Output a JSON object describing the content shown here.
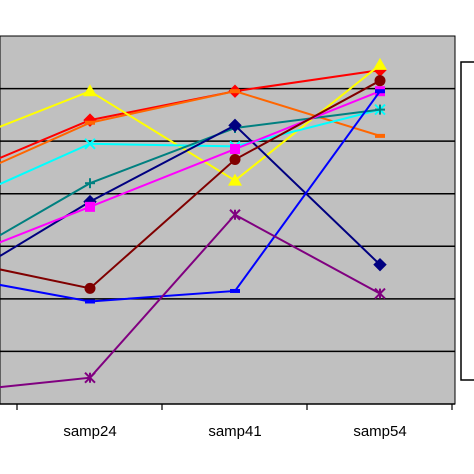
{
  "chart_data": {
    "type": "line",
    "categories": [
      "",
      "samp24",
      "samp41",
      "samp54"
    ],
    "ylim": [
      0,
      7
    ],
    "grid": true,
    "legend": "right (entries not visible)",
    "plot_background": "#c0c0c0",
    "series": [
      {
        "color": "#ff0000",
        "marker": "diamond",
        "values": [
          4.6,
          5.4,
          5.95,
          6.35
        ]
      },
      {
        "color": "#ff6600",
        "marker": "dash",
        "values": [
          4.5,
          5.35,
          5.95,
          5.1
        ]
      },
      {
        "color": "#ffff00",
        "marker": "triangle",
        "values": [
          5.2,
          5.95,
          4.25,
          6.45
        ]
      },
      {
        "color": "#00ffff",
        "marker": "x",
        "values": [
          4.1,
          4.95,
          4.9,
          5.6
        ]
      },
      {
        "color": "#008080",
        "marker": "plus",
        "values": [
          3.1,
          4.2,
          5.25,
          5.6
        ]
      },
      {
        "color": "#000080",
        "marker": "diamond",
        "values": [
          2.7,
          3.85,
          5.3,
          2.65
        ]
      },
      {
        "color": "#ff00ff",
        "marker": "square",
        "values": [
          3.0,
          3.75,
          4.85,
          5.95
        ]
      },
      {
        "color": "#800000",
        "marker": "circle",
        "values": [
          2.6,
          2.2,
          4.65,
          6.15
        ]
      },
      {
        "color": "#0000ff",
        "marker": "dash",
        "values": [
          2.3,
          1.95,
          2.15,
          5.95
        ]
      },
      {
        "color": "#800080",
        "marker": "star",
        "values": [
          0.3,
          0.5,
          3.6,
          2.1
        ]
      }
    ]
  }
}
